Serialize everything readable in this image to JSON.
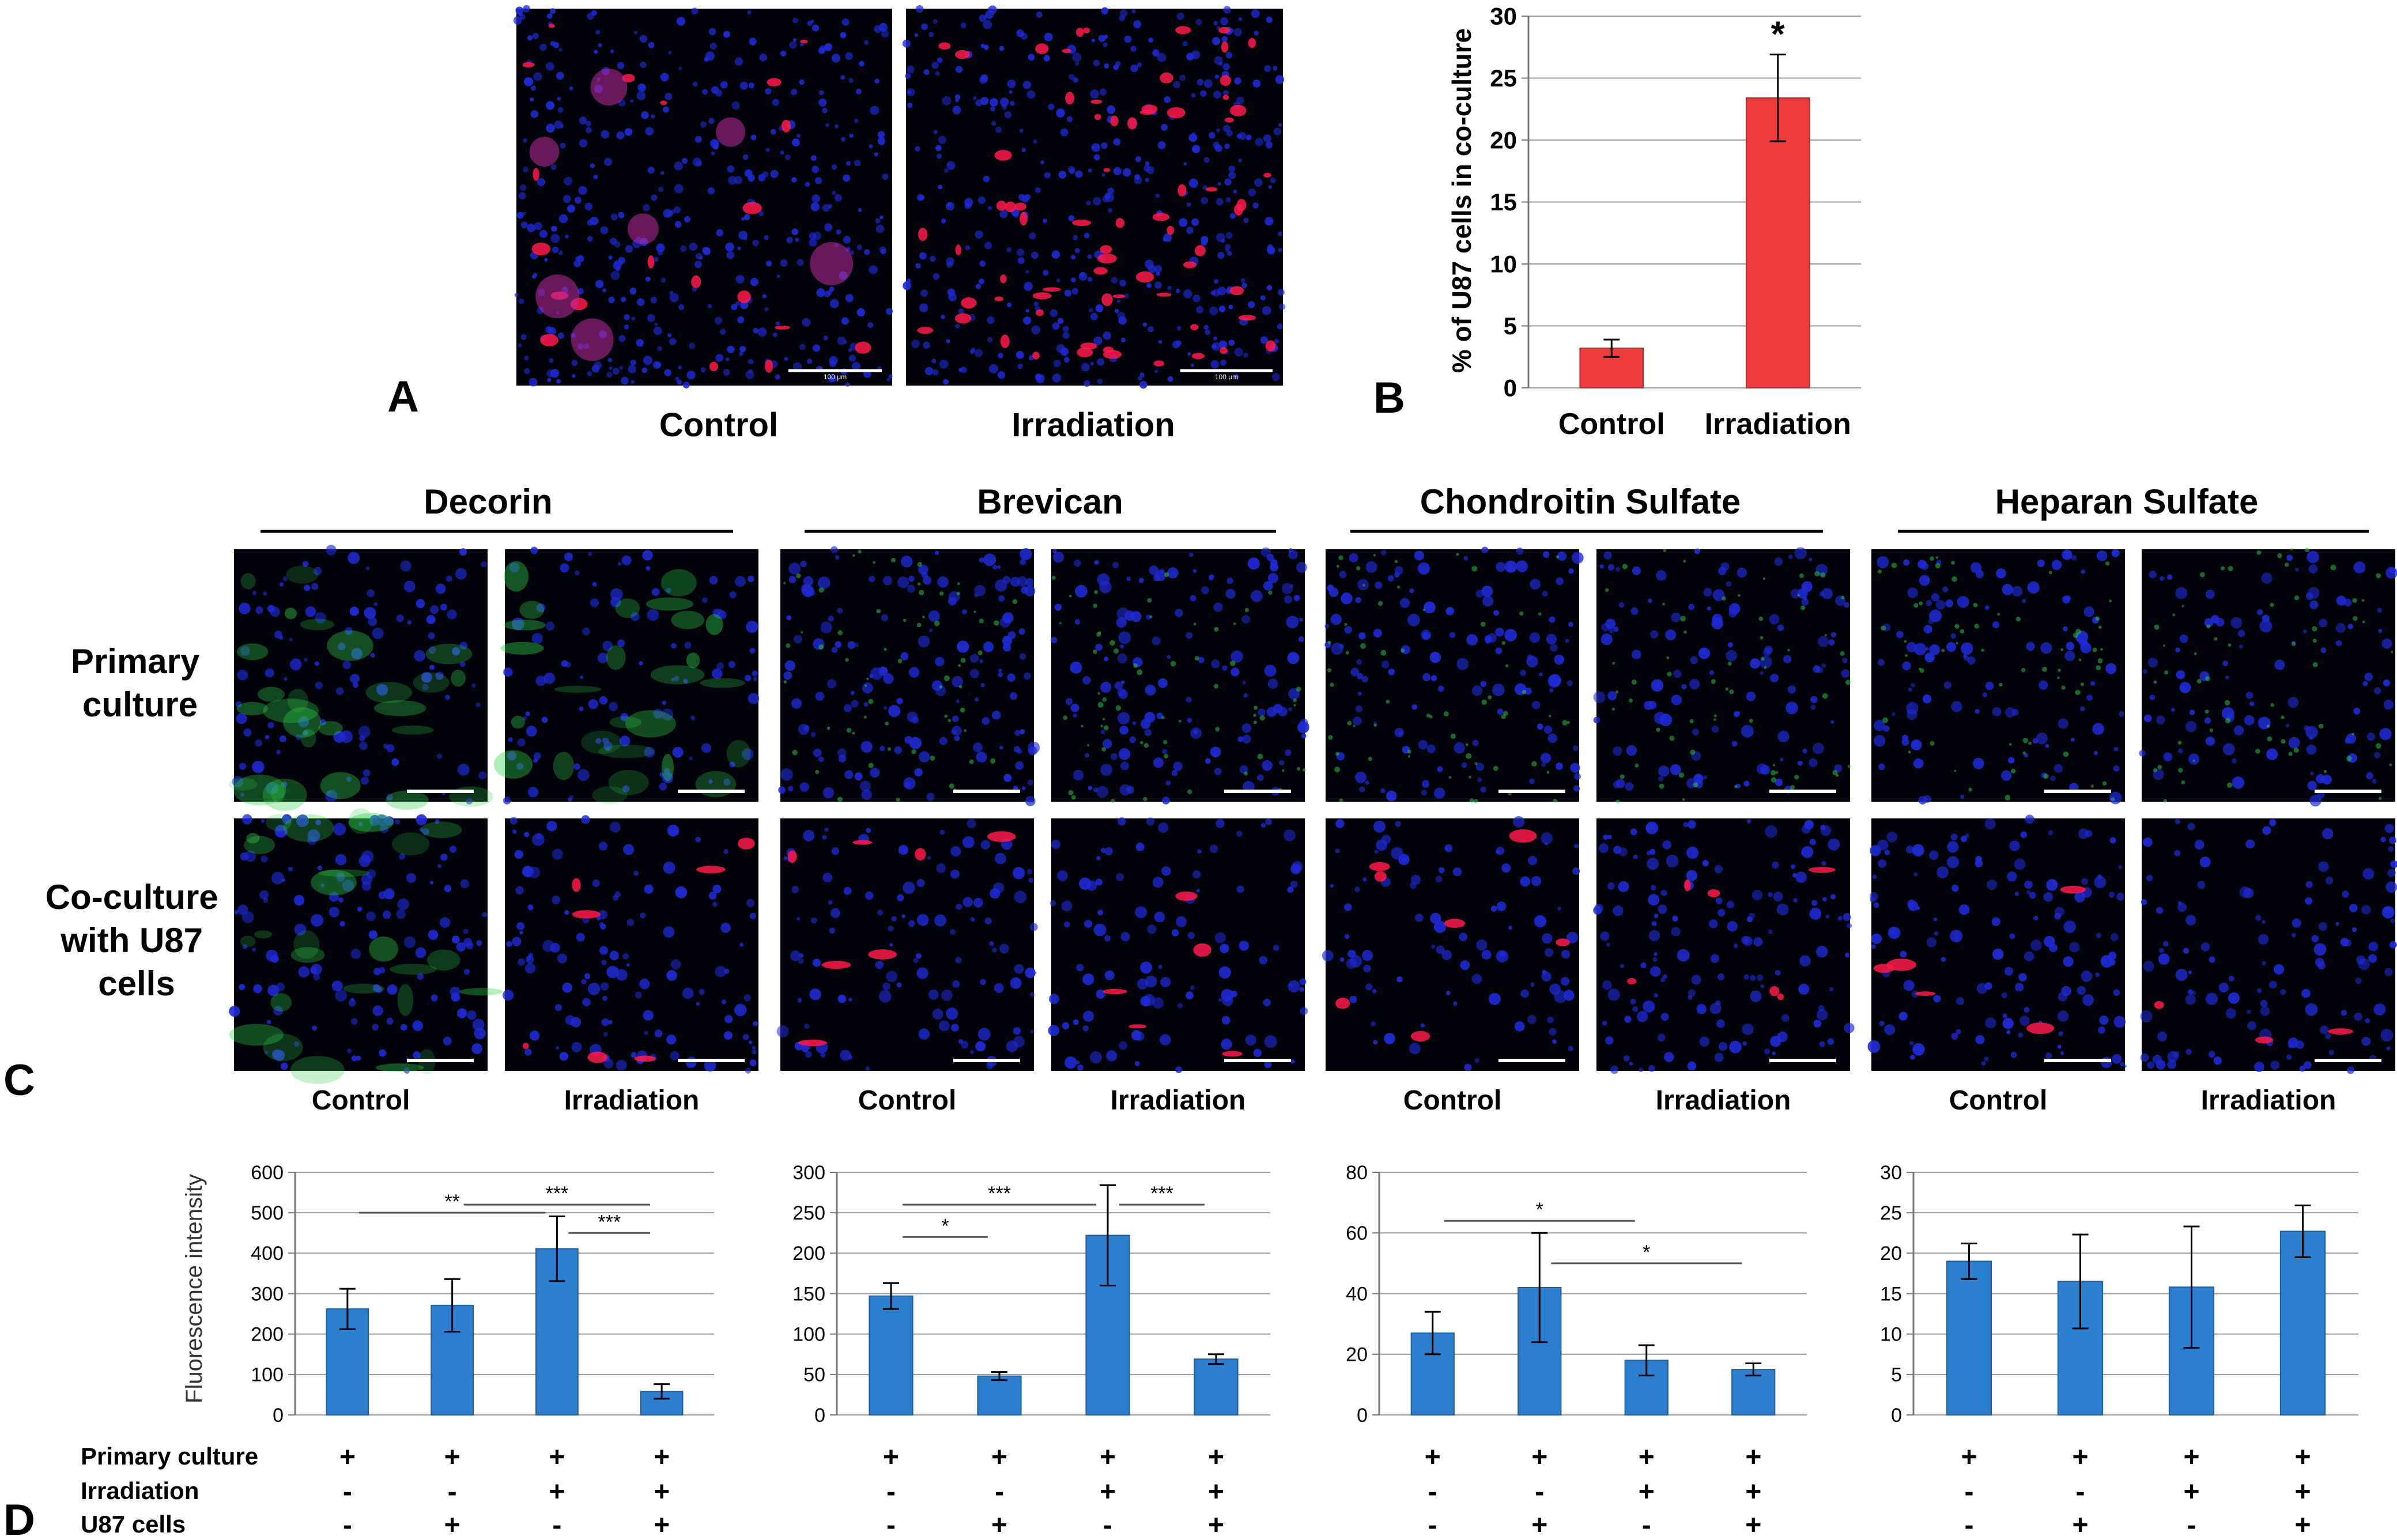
{
  "panel_letters": {
    "a": "A",
    "b": "B",
    "c": "C",
    "d": "D"
  },
  "panel_a": {
    "labels": [
      "Control",
      "Irradiation"
    ],
    "scale_text": [
      "100 μm",
      "100 μm"
    ]
  },
  "panel_c": {
    "headers": [
      "Decorin",
      "Brevican",
      "Chondroitin Sulfate",
      "Heparan Sulfate"
    ],
    "row_labels": [
      [
        "Primary",
        "culture"
      ],
      [
        "Co-culture",
        "with U87",
        "cells"
      ]
    ],
    "col_labels": [
      "Control",
      "Irradiation"
    ]
  },
  "panel_d": {
    "ylabel": "Fluorescence intensity",
    "condition_labels": [
      "Primary culture",
      "Irradiation",
      "U87 cells"
    ],
    "signs": [
      [
        "+",
        "+",
        "+",
        "+"
      ],
      [
        "-",
        "-",
        "+",
        "+"
      ],
      [
        "-",
        "+",
        "-",
        "+"
      ]
    ]
  },
  "colors": {
    "red_bar": "#ee3b3b",
    "blue_bar": "#2b7fce",
    "nuclei": "#1f2bd6",
    "red_cells": "#ff1a4a",
    "green_stain": "#2fd14a",
    "image_bg": "#02030a"
  },
  "chart_data": [
    {
      "type": "bar",
      "panel": "B",
      "categories": [
        "Control",
        "Irradiation"
      ],
      "values": [
        3.2,
        23.4
      ],
      "errors": [
        0.7,
        3.5
      ],
      "annotations": [
        "",
        "*"
      ],
      "ylabel": "% of U87 cells in co-culture",
      "ylim": [
        0,
        30
      ],
      "yticks": [
        "0",
        "5",
        "10",
        "15",
        "20",
        "25",
        "30"
      ],
      "grid": true
    },
    {
      "type": "bar",
      "panel": "D-Decorin",
      "values": [
        262,
        271,
        411,
        58
      ],
      "errors": [
        50,
        65,
        80,
        18
      ],
      "ylim": [
        0,
        600
      ],
      "yticks": [
        "0",
        "100",
        "200",
        "300",
        "400",
        "500",
        "600"
      ],
      "significance": [
        {
          "from": 1,
          "to": 3,
          "level": 500,
          "label": "**"
        },
        {
          "from": 2,
          "to": 4,
          "level": 520,
          "label": "***"
        },
        {
          "from": 3,
          "to": 4,
          "level": 450,
          "label": "***"
        }
      ],
      "grid": true
    },
    {
      "type": "bar",
      "panel": "D-Brevican",
      "values": [
        147,
        48,
        222,
        69
      ],
      "errors": [
        16,
        5,
        62,
        6
      ],
      "ylim": [
        0,
        300
      ],
      "yticks": [
        "0",
        "50",
        "100",
        "150",
        "200",
        "250",
        "300"
      ],
      "significance": [
        {
          "from": 1,
          "to": 2,
          "level": 220,
          "label": "*"
        },
        {
          "from": 1,
          "to": 3,
          "level": 260,
          "label": "***"
        },
        {
          "from": 3,
          "to": 4,
          "level": 260,
          "label": "***"
        }
      ],
      "grid": true
    },
    {
      "type": "bar",
      "panel": "D-Chondroitin Sulfate",
      "values": [
        27,
        42,
        18,
        15
      ],
      "errors": [
        7,
        18,
        5,
        2
      ],
      "ylim": [
        0,
        80
      ],
      "yticks": [
        "0",
        "20",
        "40",
        "60",
        "80"
      ],
      "significance": [
        {
          "from": 1,
          "to": 3,
          "level": 64,
          "label": "*"
        },
        {
          "from": 2,
          "to": 4,
          "level": 50,
          "label": "*"
        }
      ],
      "grid": true
    },
    {
      "type": "bar",
      "panel": "D-Heparan Sulfate",
      "values": [
        19,
        16.5,
        15.8,
        22.7
      ],
      "errors": [
        2.2,
        5.8,
        7.5,
        3.2
      ],
      "ylim": [
        0,
        30
      ],
      "yticks": [
        "0",
        "5",
        "10",
        "15",
        "20",
        "25",
        "30"
      ],
      "significance": [],
      "grid": true
    }
  ]
}
